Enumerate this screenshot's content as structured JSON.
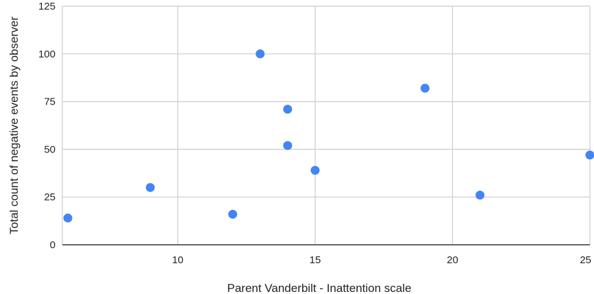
{
  "chart_data": {
    "type": "scatter",
    "title": "",
    "xlabel": "Parent Vanderbilt - Inattention scale",
    "ylabel": "Total count of negative events by observer",
    "xlim": [
      5.8,
      25
    ],
    "ylim": [
      0,
      125
    ],
    "x_ticks": [
      10,
      15,
      20,
      25
    ],
    "y_ticks": [
      0,
      25,
      50,
      75,
      100,
      125
    ],
    "grid": true,
    "legend": "none",
    "point_color": "#4285f4",
    "points": [
      {
        "x": 6,
        "y": 14
      },
      {
        "x": 9,
        "y": 30
      },
      {
        "x": 12,
        "y": 16
      },
      {
        "x": 13,
        "y": 100
      },
      {
        "x": 14,
        "y": 71
      },
      {
        "x": 14,
        "y": 52
      },
      {
        "x": 15,
        "y": 39
      },
      {
        "x": 19,
        "y": 82
      },
      {
        "x": 21,
        "y": 26
      },
      {
        "x": 25,
        "y": 47
      }
    ]
  }
}
